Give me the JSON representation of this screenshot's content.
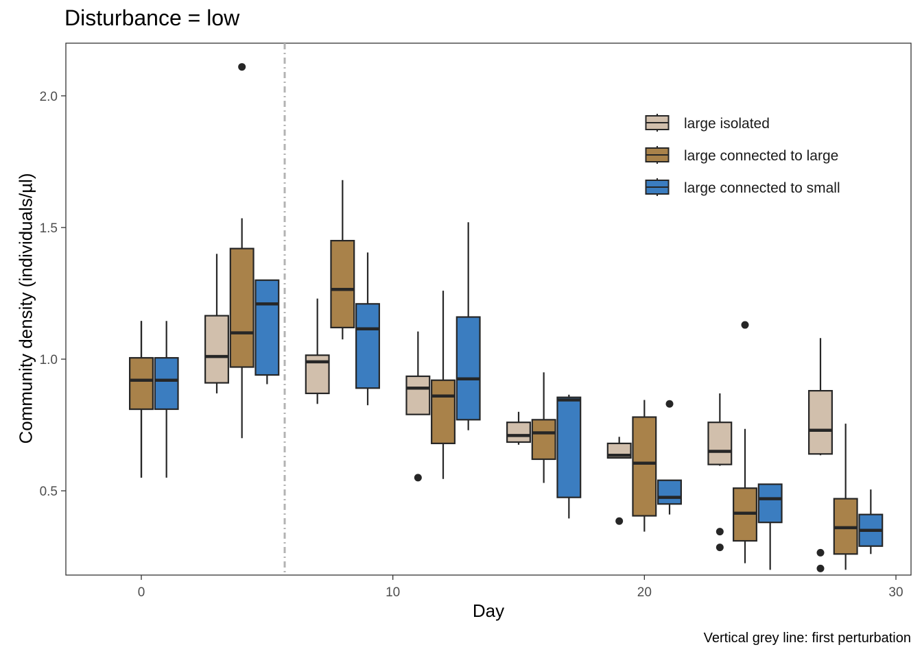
{
  "chart_data": {
    "type": "boxplot",
    "title": "Disturbance = low",
    "xlabel": "Day",
    "ylabel": "Community density (individuals/µl)",
    "caption": "Vertical grey line: first perturbation",
    "xlim": [
      -3,
      30.6
    ],
    "ylim": [
      0.18,
      2.2
    ],
    "xticks": [
      0,
      10,
      20,
      30
    ],
    "yticks": [
      0.5,
      1.0,
      1.5,
      2.0
    ],
    "ytick_labels": [
      "0.5",
      "1.0",
      "1.5",
      "2.0"
    ],
    "grid": false,
    "legend_position": "top-right",
    "vline": {
      "x": 5.7,
      "style": "dash-dot",
      "color": "#b3b3b3"
    },
    "series": [
      {
        "name": "large isolated",
        "color": "#d1bfac",
        "boxes": [
          {
            "day": 0,
            "lower": 0.55,
            "q1": 0.81,
            "median": 0.92,
            "q3": 1.005,
            "upper": 1.145,
            "outliers": []
          },
          {
            "day": 3,
            "lower": 0.87,
            "q1": 0.91,
            "median": 1.01,
            "q3": 1.165,
            "upper": 1.4,
            "outliers": []
          },
          {
            "day": 7,
            "lower": 0.83,
            "q1": 0.87,
            "median": 0.99,
            "q3": 1.015,
            "upper": 1.23,
            "outliers": []
          },
          {
            "day": 11,
            "lower": 0.79,
            "q1": 0.79,
            "median": 0.89,
            "q3": 0.935,
            "upper": 1.105,
            "outliers": [
              0.55
            ]
          },
          {
            "day": 15,
            "lower": 0.675,
            "q1": 0.685,
            "median": 0.71,
            "q3": 0.76,
            "upper": 0.8,
            "outliers": []
          },
          {
            "day": 19,
            "lower": 0.625,
            "q1": 0.625,
            "median": 0.635,
            "q3": 0.68,
            "upper": 0.705,
            "outliers": [
              0.385
            ]
          },
          {
            "day": 23,
            "lower": 0.595,
            "q1": 0.6,
            "median": 0.65,
            "q3": 0.76,
            "upper": 0.87,
            "outliers": [
              0.345,
              0.285
            ]
          },
          {
            "day": 27,
            "lower": 0.635,
            "q1": 0.64,
            "median": 0.73,
            "q3": 0.88,
            "upper": 1.08,
            "outliers": [
              0.265,
              0.205
            ]
          }
        ]
      },
      {
        "name": "large connected to large",
        "color": "#a9824a",
        "boxes": [
          {
            "day": 0,
            "lower": 0.55,
            "q1": 0.81,
            "median": 0.92,
            "q3": 1.005,
            "upper": 1.145,
            "outliers": []
          },
          {
            "day": 4,
            "lower": 0.7,
            "q1": 0.97,
            "median": 1.1,
            "q3": 1.42,
            "upper": 1.535,
            "outliers": [
              2.11
            ]
          },
          {
            "day": 8,
            "lower": 1.075,
            "q1": 1.12,
            "median": 1.265,
            "q3": 1.45,
            "upper": 1.68,
            "outliers": []
          },
          {
            "day": 12,
            "lower": 0.545,
            "q1": 0.68,
            "median": 0.86,
            "q3": 0.92,
            "upper": 1.26,
            "outliers": []
          },
          {
            "day": 16,
            "lower": 0.53,
            "q1": 0.62,
            "median": 0.72,
            "q3": 0.77,
            "upper": 0.95,
            "outliers": []
          },
          {
            "day": 20,
            "lower": 0.345,
            "q1": 0.405,
            "median": 0.605,
            "q3": 0.78,
            "upper": 0.845,
            "outliers": []
          },
          {
            "day": 24,
            "lower": 0.225,
            "q1": 0.31,
            "median": 0.415,
            "q3": 0.51,
            "upper": 0.735,
            "outliers": [
              1.13
            ]
          },
          {
            "day": 28,
            "lower": 0.2,
            "q1": 0.26,
            "median": 0.36,
            "q3": 0.47,
            "upper": 0.755,
            "outliers": []
          }
        ]
      },
      {
        "name": "large connected to small",
        "color": "#3b7dc0",
        "boxes": [
          {
            "day": 1,
            "lower": 0.55,
            "q1": 0.81,
            "median": 0.92,
            "q3": 1.005,
            "upper": 1.145,
            "outliers": []
          },
          {
            "day": 5,
            "lower": 0.905,
            "q1": 0.94,
            "median": 1.21,
            "q3": 1.3,
            "upper": 1.3,
            "outliers": []
          },
          {
            "day": 9,
            "lower": 0.825,
            "q1": 0.89,
            "median": 1.115,
            "q3": 1.21,
            "upper": 1.405,
            "outliers": []
          },
          {
            "day": 13,
            "lower": 0.73,
            "q1": 0.77,
            "median": 0.925,
            "q3": 1.16,
            "upper": 1.52,
            "outliers": []
          },
          {
            "day": 17,
            "lower": 0.395,
            "q1": 0.475,
            "median": 0.845,
            "q3": 0.855,
            "upper": 0.865,
            "outliers": []
          },
          {
            "day": 21,
            "lower": 0.41,
            "q1": 0.45,
            "median": 0.475,
            "q3": 0.54,
            "upper": 0.54,
            "outliers": [
              0.83
            ]
          },
          {
            "day": 25,
            "lower": 0.2,
            "q1": 0.38,
            "median": 0.47,
            "q3": 0.525,
            "upper": 0.525,
            "outliers": []
          },
          {
            "day": 29,
            "lower": 0.26,
            "q1": 0.29,
            "median": 0.35,
            "q3": 0.41,
            "upper": 0.505,
            "outliers": []
          }
        ]
      }
    ]
  }
}
